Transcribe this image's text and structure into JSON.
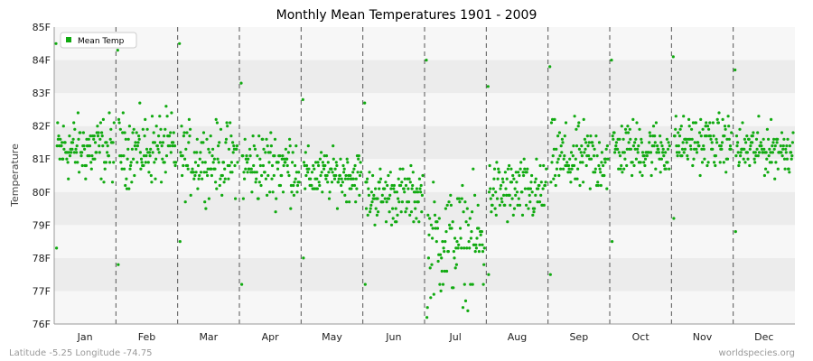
{
  "chart_data": {
    "type": "scatter",
    "title": "Monthly Mean Temperatures 1901 - 2009",
    "ylabel": "Temperature",
    "xlabel": "",
    "categories": [
      "Jan",
      "Feb",
      "Mar",
      "Apr",
      "May",
      "Jun",
      "Jul",
      "Aug",
      "Sep",
      "Oct",
      "Nov",
      "Dec"
    ],
    "ylim": [
      76,
      85
    ],
    "yticks": [
      {
        "value": 76,
        "label": "76F"
      },
      {
        "value": 77,
        "label": "77F"
      },
      {
        "value": 78,
        "label": "78F"
      },
      {
        "value": 79,
        "label": "79F"
      },
      {
        "value": 80,
        "label": "80F"
      },
      {
        "value": 81,
        "label": "81F"
      },
      {
        "value": 82,
        "label": "82F"
      },
      {
        "value": 83,
        "label": "83F"
      },
      {
        "value": 84,
        "label": "84F"
      },
      {
        "value": 85,
        "label": "85F"
      }
    ],
    "legend": {
      "position": "top-left",
      "label": "Mean Temp"
    },
    "grid": "alternating horizontal bands, dashed month separators",
    "series": [
      {
        "name": "Mean Temp",
        "color": "#11aa11",
        "monthly_summary": [
          {
            "month": "Jan",
            "min": 78.3,
            "max": 84.5,
            "typical": 81.3
          },
          {
            "month": "Feb",
            "min": 77.8,
            "max": 84.3,
            "typical": 81.3
          },
          {
            "month": "Mar",
            "min": 78.5,
            "max": 84.5,
            "typical": 81.0
          },
          {
            "month": "Apr",
            "min": 77.2,
            "max": 83.3,
            "typical": 80.8
          },
          {
            "month": "May",
            "min": 78.0,
            "max": 82.8,
            "typical": 80.5
          },
          {
            "month": "Jun",
            "min": 77.2,
            "max": 82.7,
            "typical": 79.9
          },
          {
            "month": "Jul",
            "min": 76.2,
            "max": 84.0,
            "typical": 78.5
          },
          {
            "month": "Aug",
            "min": 77.5,
            "max": 83.2,
            "typical": 80.0
          },
          {
            "month": "Sep",
            "min": 77.5,
            "max": 83.8,
            "typical": 81.0
          },
          {
            "month": "Oct",
            "min": 78.5,
            "max": 84.0,
            "typical": 81.3
          },
          {
            "month": "Nov",
            "min": 79.2,
            "max": 84.1,
            "typical": 81.5
          },
          {
            "month": "Dec",
            "min": 78.8,
            "max": 83.7,
            "typical": 81.3
          }
        ]
      }
    ]
  },
  "footer": {
    "left": "Latitude -5.25 Longitude -74.75",
    "right": "worldspecies.org"
  }
}
